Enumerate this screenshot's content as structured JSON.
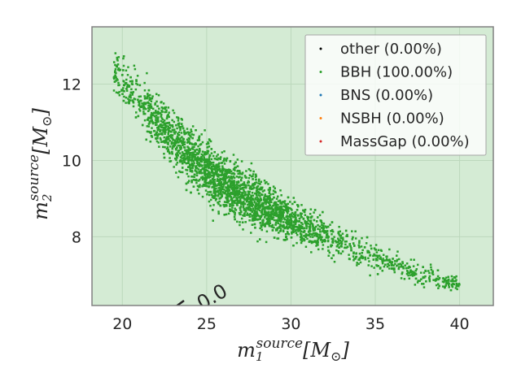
{
  "chart_data": {
    "type": "scatter",
    "xlabel": {
      "base": "m",
      "sub": "1",
      "sup": "source",
      "unit": "[M",
      "unit_sub": "⊙",
      "unit_close": "]"
    },
    "ylabel": {
      "base": "m",
      "sub": "2",
      "sup": "source",
      "unit": "[M",
      "unit_sub": "⊙",
      "unit_close": "]"
    },
    "xlim": [
      18.2,
      42.0
    ],
    "ylim": [
      6.2,
      13.5
    ],
    "xticks": [
      20,
      25,
      30,
      35,
      40
    ],
    "yticks": [
      8,
      10,
      12
    ],
    "grid": true,
    "background": "#d4ebd4",
    "grid_color": "#bcd8bc",
    "contour_label": "0.0",
    "legend": {
      "placement": "top-right",
      "entries": [
        {
          "label": "other (0.00%)",
          "color": "#000000"
        },
        {
          "label": "BBH (100.00%)",
          "color": "#2ca02c"
        },
        {
          "label": "BNS (0.00%)",
          "color": "#1f77b4"
        },
        {
          "label": "NSBH (0.00%)",
          "color": "#ff7f0e"
        },
        {
          "label": "MassGap (0.00%)",
          "color": "#d62728"
        }
      ]
    },
    "series": [
      {
        "name": "BBH (100.00%)",
        "color": "#2ca02c",
        "band_centerline": [
          {
            "x": 19.5,
            "y": 12.3
          },
          {
            "x": 21.0,
            "y": 11.6
          },
          {
            "x": 22.5,
            "y": 10.8
          },
          {
            "x": 24.0,
            "y": 10.15
          },
          {
            "x": 25.5,
            "y": 9.55
          },
          {
            "x": 27.0,
            "y": 9.1
          },
          {
            "x": 28.5,
            "y": 8.75
          },
          {
            "x": 30.0,
            "y": 8.4
          },
          {
            "x": 31.5,
            "y": 8.1
          },
          {
            "x": 33.0,
            "y": 7.85
          },
          {
            "x": 34.5,
            "y": 7.55
          },
          {
            "x": 36.0,
            "y": 7.3
          },
          {
            "x": 37.5,
            "y": 7.05
          },
          {
            "x": 39.0,
            "y": 6.85
          },
          {
            "x": 40.0,
            "y": 6.75
          }
        ],
        "band_halfwidth_y": [
          {
            "x": 19.5,
            "y": 0.5
          },
          {
            "x": 22.5,
            "y": 0.6
          },
          {
            "x": 25.0,
            "y": 0.7
          },
          {
            "x": 28.0,
            "y": 0.55
          },
          {
            "x": 31.0,
            "y": 0.42
          },
          {
            "x": 34.0,
            "y": 0.33
          },
          {
            "x": 37.0,
            "y": 0.28
          },
          {
            "x": 40.0,
            "y": 0.15
          }
        ],
        "density_peak_x": 26.5
      }
    ]
  }
}
